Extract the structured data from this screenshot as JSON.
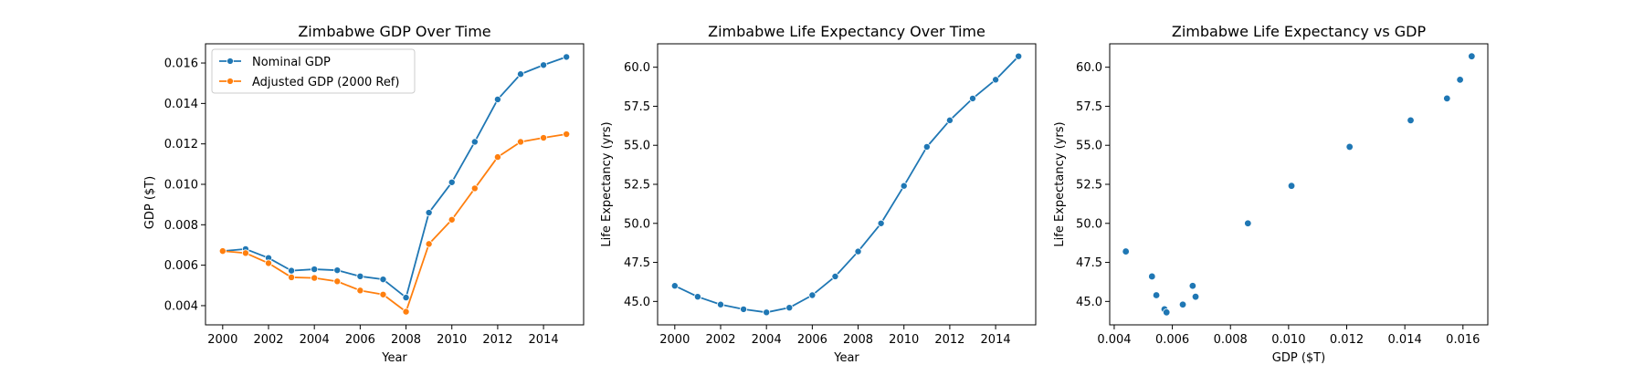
{
  "chart_data": [
    {
      "type": "line",
      "title": "Zimbabwe GDP Over Time",
      "xlabel": "Year",
      "ylabel": "GDP ($T)",
      "xlim": [
        1999.25,
        2015.75
      ],
      "ylim": [
        0.00305,
        0.01695
      ],
      "xticks": [
        2000,
        2002,
        2004,
        2006,
        2008,
        2010,
        2012,
        2014
      ],
      "xtick_labels": [
        "2000",
        "2002",
        "2004",
        "2006",
        "2008",
        "2010",
        "2012",
        "2014"
      ],
      "yticks": [
        0.004,
        0.006,
        0.008,
        0.01,
        0.012,
        0.014,
        0.016
      ],
      "ytick_labels": [
        "0.004",
        "0.006",
        "0.008",
        "0.010",
        "0.012",
        "0.014",
        "0.016"
      ],
      "legend": "top-left",
      "grid": false,
      "x": [
        2000,
        2001,
        2002,
        2003,
        2004,
        2005,
        2006,
        2007,
        2008,
        2009,
        2010,
        2011,
        2012,
        2013,
        2014,
        2015
      ],
      "series": [
        {
          "name": "Nominal GDP",
          "color": "#1f77b4",
          "values": [
            0.0067,
            0.0068,
            0.00636,
            0.00573,
            0.0058,
            0.00575,
            0.00545,
            0.0053,
            0.0044,
            0.0086,
            0.0101,
            0.0121,
            0.0142,
            0.01545,
            0.0159,
            0.0163
          ]
        },
        {
          "name": "Adjusted GDP (2000 Ref)",
          "color": "#ff7f0e",
          "values": [
            0.0067,
            0.0066,
            0.0061,
            0.0054,
            0.00537,
            0.0052,
            0.00475,
            0.00455,
            0.0037,
            0.00705,
            0.00825,
            0.0098,
            0.01135,
            0.0121,
            0.0123,
            0.01248
          ]
        }
      ]
    },
    {
      "type": "line",
      "title": "Zimbabwe Life Expectancy Over Time",
      "xlabel": "Year",
      "ylabel": "Life Expectancy (yrs)",
      "xlim": [
        1999.25,
        2015.75
      ],
      "ylim": [
        43.5,
        61.5
      ],
      "xticks": [
        2000,
        2002,
        2004,
        2006,
        2008,
        2010,
        2012,
        2014
      ],
      "xtick_labels": [
        "2000",
        "2002",
        "2004",
        "2006",
        "2008",
        "2010",
        "2012",
        "2014"
      ],
      "yticks": [
        45.0,
        47.5,
        50.0,
        52.5,
        55.0,
        57.5,
        60.0
      ],
      "ytick_labels": [
        "45.0",
        "47.5",
        "50.0",
        "52.5",
        "55.0",
        "57.5",
        "60.0"
      ],
      "grid": false,
      "x": [
        2000,
        2001,
        2002,
        2003,
        2004,
        2005,
        2006,
        2007,
        2008,
        2009,
        2010,
        2011,
        2012,
        2013,
        2014,
        2015
      ],
      "series": [
        {
          "color": "#1f77b4",
          "values": [
            46.0,
            45.3,
            44.8,
            44.5,
            44.3,
            44.6,
            45.4,
            46.6,
            48.2,
            50.0,
            52.4,
            54.9,
            56.6,
            58.0,
            59.2,
            60.7
          ]
        }
      ]
    },
    {
      "type": "scatter",
      "title": "Zimbabwe Life Expectancy vs GDP",
      "xlabel": "GDP ($T)",
      "ylabel": "Life Expectancy (yrs)",
      "xlim": [
        0.003845,
        0.016855
      ],
      "ylim": [
        43.5,
        61.5
      ],
      "xticks": [
        0.004,
        0.006,
        0.008,
        0.01,
        0.012,
        0.014,
        0.016
      ],
      "xtick_labels": [
        "0.004",
        "0.006",
        "0.008",
        "0.010",
        "0.012",
        "0.014",
        "0.016"
      ],
      "yticks": [
        45.0,
        47.5,
        50.0,
        52.5,
        55.0,
        57.5,
        60.0
      ],
      "ytick_labels": [
        "45.0",
        "47.5",
        "50.0",
        "52.5",
        "55.0",
        "57.5",
        "60.0"
      ],
      "grid": false,
      "color": "#1f77b4",
      "points": [
        {
          "x": 0.0067,
          "y": 46.0
        },
        {
          "x": 0.0068,
          "y": 45.3
        },
        {
          "x": 0.00636,
          "y": 44.8
        },
        {
          "x": 0.00573,
          "y": 44.5
        },
        {
          "x": 0.0058,
          "y": 44.3
        },
        {
          "x": 0.00545,
          "y": 45.4
        },
        {
          "x": 0.0053,
          "y": 46.6
        },
        {
          "x": 0.0044,
          "y": 48.2
        },
        {
          "x": 0.0086,
          "y": 50.0
        },
        {
          "x": 0.0101,
          "y": 52.4
        },
        {
          "x": 0.0121,
          "y": 54.9
        },
        {
          "x": 0.0142,
          "y": 56.6
        },
        {
          "x": 0.01545,
          "y": 58.0
        },
        {
          "x": 0.0159,
          "y": 59.2
        },
        {
          "x": 0.0163,
          "y": 60.7
        }
      ]
    }
  ]
}
